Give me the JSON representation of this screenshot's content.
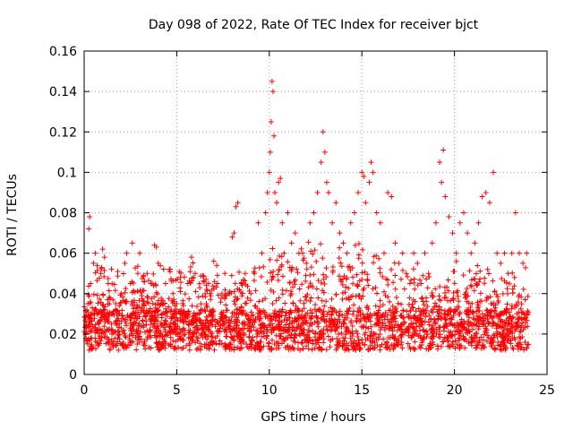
{
  "chart_data": {
    "type": "scatter",
    "title": "Day 098 of 2022, Rate Of TEC Index for receiver bjct",
    "xlabel": "GPS time / hours",
    "ylabel": "ROTI / TECUs",
    "xlim": [
      0,
      25
    ],
    "ylim": [
      0,
      0.16
    ],
    "xticks": [
      0,
      5,
      10,
      15,
      20,
      25
    ],
    "xtick_labels": [
      "0",
      "5",
      "10",
      "15",
      "20",
      "25"
    ],
    "yticks": [
      0,
      0.02,
      0.04,
      0.06,
      0.08,
      0.1,
      0.12,
      0.14,
      0.16
    ],
    "ytick_labels": [
      "0",
      "0.02",
      "0.04",
      "0.06",
      "0.08",
      "0.1",
      "0.12",
      "0.14",
      "0.16"
    ],
    "grid": true,
    "marker": "plus",
    "color": "#ff0000",
    "x_extent": [
      0,
      24
    ],
    "points": [
      [
        0.1,
        0.018
      ],
      [
        0.2,
        0.035
      ],
      [
        0.25,
        0.072
      ],
      [
        0.3,
        0.078
      ],
      [
        0.35,
        0.045
      ],
      [
        0.5,
        0.055
      ],
      [
        0.6,
        0.06
      ],
      [
        0.7,
        0.03
      ],
      [
        0.8,
        0.025
      ],
      [
        0.9,
        0.05
      ],
      [
        1.0,
        0.062
      ],
      [
        1.1,
        0.058
      ],
      [
        1.2,
        0.03
      ],
      [
        1.3,
        0.045
      ],
      [
        1.5,
        0.02
      ],
      [
        1.7,
        0.035
      ],
      [
        1.9,
        0.025
      ],
      [
        2.0,
        0.04
      ],
      [
        2.2,
        0.055
      ],
      [
        2.3,
        0.06
      ],
      [
        2.5,
        0.045
      ],
      [
        2.6,
        0.065
      ],
      [
        2.7,
        0.03
      ],
      [
        2.9,
        0.05
      ],
      [
        3.0,
        0.06
      ],
      [
        3.2,
        0.035
      ],
      [
        3.4,
        0.05
      ],
      [
        3.6,
        0.045
      ],
      [
        3.8,
        0.064
      ],
      [
        3.9,
        0.063
      ],
      [
        4.0,
        0.055
      ],
      [
        4.2,
        0.03
      ],
      [
        4.4,
        0.045
      ],
      [
        4.6,
        0.052
      ],
      [
        4.8,
        0.04
      ],
      [
        5.0,
        0.035
      ],
      [
        5.2,
        0.048
      ],
      [
        5.4,
        0.03
      ],
      [
        5.6,
        0.045
      ],
      [
        5.8,
        0.058
      ],
      [
        6.0,
        0.05
      ],
      [
        6.2,
        0.03
      ],
      [
        6.4,
        0.025
      ],
      [
        6.6,
        0.035
      ],
      [
        6.8,
        0.04
      ],
      [
        7.0,
        0.056
      ],
      [
        7.2,
        0.045
      ],
      [
        7.4,
        0.03
      ],
      [
        7.6,
        0.05
      ],
      [
        7.8,
        0.04
      ],
      [
        8.0,
        0.068
      ],
      [
        8.1,
        0.07
      ],
      [
        8.2,
        0.083
      ],
      [
        8.3,
        0.085
      ],
      [
        8.5,
        0.045
      ],
      [
        8.7,
        0.05
      ],
      [
        9.0,
        0.04
      ],
      [
        9.2,
        0.05
      ],
      [
        9.4,
        0.075
      ],
      [
        9.6,
        0.06
      ],
      [
        9.8,
        0.08
      ],
      [
        9.9,
        0.09
      ],
      [
        10.0,
        0.1
      ],
      [
        10.05,
        0.11
      ],
      [
        10.1,
        0.125
      ],
      [
        10.15,
        0.145
      ],
      [
        10.2,
        0.14
      ],
      [
        10.25,
        0.118
      ],
      [
        10.3,
        0.09
      ],
      [
        10.4,
        0.085
      ],
      [
        10.5,
        0.095
      ],
      [
        10.6,
        0.097
      ],
      [
        10.7,
        0.075
      ],
      [
        10.8,
        0.06
      ],
      [
        11.0,
        0.08
      ],
      [
        11.2,
        0.065
      ],
      [
        11.4,
        0.07
      ],
      [
        11.6,
        0.06
      ],
      [
        11.8,
        0.06
      ],
      [
        12.0,
        0.055
      ],
      [
        12.2,
        0.075
      ],
      [
        12.4,
        0.08
      ],
      [
        12.6,
        0.09
      ],
      [
        12.8,
        0.105
      ],
      [
        12.9,
        0.12
      ],
      [
        13.0,
        0.11
      ],
      [
        13.1,
        0.095
      ],
      [
        13.2,
        0.09
      ],
      [
        13.4,
        0.075
      ],
      [
        13.6,
        0.085
      ],
      [
        13.8,
        0.07
      ],
      [
        14.0,
        0.065
      ],
      [
        14.2,
        0.06
      ],
      [
        14.4,
        0.075
      ],
      [
        14.6,
        0.08
      ],
      [
        14.8,
        0.09
      ],
      [
        15.0,
        0.1
      ],
      [
        15.1,
        0.098
      ],
      [
        15.2,
        0.085
      ],
      [
        15.4,
        0.095
      ],
      [
        15.5,
        0.105
      ],
      [
        15.6,
        0.1
      ],
      [
        15.8,
        0.08
      ],
      [
        16.0,
        0.075
      ],
      [
        16.2,
        0.06
      ],
      [
        16.4,
        0.09
      ],
      [
        16.6,
        0.088
      ],
      [
        16.8,
        0.065
      ],
      [
        17.0,
        0.055
      ],
      [
        17.2,
        0.06
      ],
      [
        17.4,
        0.05
      ],
      [
        17.6,
        0.045
      ],
      [
        17.8,
        0.06
      ],
      [
        18.0,
        0.055
      ],
      [
        18.2,
        0.045
      ],
      [
        18.4,
        0.06
      ],
      [
        18.6,
        0.05
      ],
      [
        18.8,
        0.065
      ],
      [
        19.0,
        0.075
      ],
      [
        19.2,
        0.105
      ],
      [
        19.3,
        0.095
      ],
      [
        19.4,
        0.111
      ],
      [
        19.5,
        0.088
      ],
      [
        19.7,
        0.078
      ],
      [
        19.9,
        0.07
      ],
      [
        20.1,
        0.06
      ],
      [
        20.3,
        0.075
      ],
      [
        20.5,
        0.08
      ],
      [
        20.7,
        0.07
      ],
      [
        20.9,
        0.06
      ],
      [
        21.1,
        0.065
      ],
      [
        21.3,
        0.075
      ],
      [
        21.5,
        0.088
      ],
      [
        21.7,
        0.09
      ],
      [
        21.9,
        0.085
      ],
      [
        22.1,
        0.1
      ],
      [
        22.3,
        0.06
      ],
      [
        22.5,
        0.055
      ],
      [
        22.7,
        0.06
      ],
      [
        22.9,
        0.05
      ],
      [
        23.1,
        0.06
      ],
      [
        23.3,
        0.08
      ],
      [
        23.5,
        0.06
      ],
      [
        23.7,
        0.055
      ],
      [
        23.9,
        0.06
      ]
    ]
  }
}
